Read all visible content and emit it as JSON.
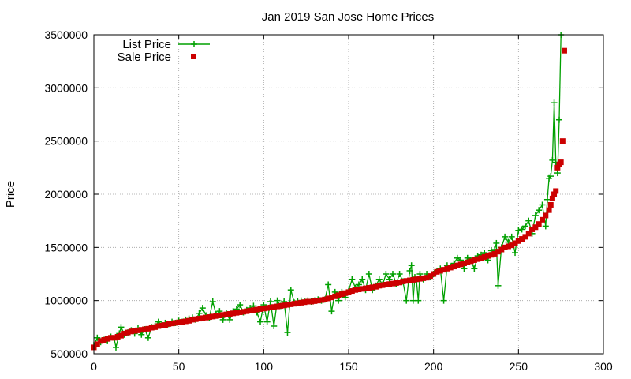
{
  "chart_data": {
    "type": "scatter",
    "title": "Jan 2019 San Jose Home Prices",
    "xlabel": "",
    "ylabel": "Price",
    "xlim": [
      0,
      300
    ],
    "ylim": [
      500000,
      3500000
    ],
    "xticks": [
      "0",
      "50",
      "100",
      "150",
      "200",
      "250",
      "300"
    ],
    "yticks": [
      "500000",
      "1000000",
      "1500000",
      "2000000",
      "2500000",
      "3000000",
      "3500000"
    ],
    "grid": true,
    "legend_position": "top-left",
    "series": [
      {
        "name": "List Price",
        "color": "#00a000",
        "style": "lines+plus-markers",
        "points": [
          [
            0,
            580000
          ],
          [
            2,
            650000
          ],
          [
            4,
            610000
          ],
          [
            6,
            630000
          ],
          [
            8,
            620000
          ],
          [
            10,
            660000
          ],
          [
            12,
            640000
          ],
          [
            13,
            560000
          ],
          [
            15,
            690000
          ],
          [
            16,
            750000
          ],
          [
            18,
            680000
          ],
          [
            20,
            700000
          ],
          [
            22,
            720000
          ],
          [
            24,
            690000
          ],
          [
            26,
            740000
          ],
          [
            28,
            680000
          ],
          [
            30,
            730000
          ],
          [
            32,
            650000
          ],
          [
            34,
            750000
          ],
          [
            36,
            760000
          ],
          [
            38,
            800000
          ],
          [
            40,
            770000
          ],
          [
            42,
            790000
          ],
          [
            44,
            780000
          ],
          [
            46,
            800000
          ],
          [
            48,
            790000
          ],
          [
            50,
            810000
          ],
          [
            52,
            800000
          ],
          [
            54,
            820000
          ],
          [
            56,
            830000
          ],
          [
            58,
            840000
          ],
          [
            60,
            820000
          ],
          [
            62,
            880000
          ],
          [
            64,
            930000
          ],
          [
            66,
            860000
          ],
          [
            68,
            840000
          ],
          [
            70,
            990000
          ],
          [
            72,
            870000
          ],
          [
            74,
            900000
          ],
          [
            76,
            820000
          ],
          [
            78,
            880000
          ],
          [
            80,
            820000
          ],
          [
            82,
            900000
          ],
          [
            84,
            920000
          ],
          [
            86,
            960000
          ],
          [
            88,
            890000
          ],
          [
            90,
            910000
          ],
          [
            92,
            930000
          ],
          [
            94,
            950000
          ],
          [
            96,
            890000
          ],
          [
            98,
            800000
          ],
          [
            100,
            960000
          ],
          [
            102,
            800000
          ],
          [
            104,
            990000
          ],
          [
            106,
            760000
          ],
          [
            108,
            1000000
          ],
          [
            110,
            950000
          ],
          [
            112,
            990000
          ],
          [
            114,
            700000
          ],
          [
            116,
            1100000
          ],
          [
            118,
            980000
          ],
          [
            120,
            990000
          ],
          [
            122,
            1000000
          ],
          [
            124,
            990000
          ],
          [
            126,
            1000000
          ],
          [
            128,
            990000
          ],
          [
            130,
            1000000
          ],
          [
            132,
            1010000
          ],
          [
            134,
            1000000
          ],
          [
            136,
            1010000
          ],
          [
            138,
            1150000
          ],
          [
            140,
            900000
          ],
          [
            142,
            1080000
          ],
          [
            144,
            1000000
          ],
          [
            146,
            1080000
          ],
          [
            148,
            1030000
          ],
          [
            150,
            1090000
          ],
          [
            152,
            1200000
          ],
          [
            154,
            1120000
          ],
          [
            156,
            1150000
          ],
          [
            158,
            1200000
          ],
          [
            160,
            1100000
          ],
          [
            162,
            1250000
          ],
          [
            164,
            1100000
          ],
          [
            166,
            1140000
          ],
          [
            168,
            1200000
          ],
          [
            170,
            1150000
          ],
          [
            172,
            1250000
          ],
          [
            174,
            1200000
          ],
          [
            176,
            1250000
          ],
          [
            178,
            1160000
          ],
          [
            180,
            1250000
          ],
          [
            182,
            1180000
          ],
          [
            184,
            1000000
          ],
          [
            186,
            1280000
          ],
          [
            187,
            1330000
          ],
          [
            188,
            1000000
          ],
          [
            189,
            1220000
          ],
          [
            190,
            1180000
          ],
          [
            191,
            1000000
          ],
          [
            192,
            1250000
          ],
          [
            194,
            1200000
          ],
          [
            196,
            1250000
          ],
          [
            198,
            1220000
          ],
          [
            200,
            1250000
          ],
          [
            202,
            1280000
          ],
          [
            204,
            1300000
          ],
          [
            206,
            1000000
          ],
          [
            208,
            1330000
          ],
          [
            210,
            1320000
          ],
          [
            212,
            1350000
          ],
          [
            214,
            1400000
          ],
          [
            216,
            1380000
          ],
          [
            218,
            1300000
          ],
          [
            220,
            1400000
          ],
          [
            222,
            1380000
          ],
          [
            224,
            1300000
          ],
          [
            226,
            1420000
          ],
          [
            228,
            1430000
          ],
          [
            230,
            1450000
          ],
          [
            232,
            1380000
          ],
          [
            234,
            1470000
          ],
          [
            236,
            1480000
          ],
          [
            237,
            1540000
          ],
          [
            238,
            1140000
          ],
          [
            240,
            1500000
          ],
          [
            242,
            1600000
          ],
          [
            244,
            1550000
          ],
          [
            246,
            1600000
          ],
          [
            248,
            1450000
          ],
          [
            250,
            1660000
          ],
          [
            252,
            1670000
          ],
          [
            254,
            1700000
          ],
          [
            256,
            1750000
          ],
          [
            258,
            1630000
          ],
          [
            260,
            1800000
          ],
          [
            262,
            1850000
          ],
          [
            264,
            1900000
          ],
          [
            266,
            1700000
          ],
          [
            267,
            1950000
          ],
          [
            268,
            2150000
          ],
          [
            269,
            2170000
          ],
          [
            270,
            2320000
          ],
          [
            271,
            2860000
          ],
          [
            272,
            2300000
          ],
          [
            273,
            2200000
          ],
          [
            274,
            2700000
          ],
          [
            275,
            3500000
          ]
        ]
      },
      {
        "name": "Sale Price",
        "color": "#cc0000",
        "style": "square-markers",
        "points": [
          [
            0,
            560000
          ],
          [
            2,
            590000
          ],
          [
            4,
            620000
          ],
          [
            6,
            630000
          ],
          [
            8,
            640000
          ],
          [
            10,
            650000
          ],
          [
            12,
            650000
          ],
          [
            14,
            660000
          ],
          [
            16,
            670000
          ],
          [
            18,
            690000
          ],
          [
            20,
            700000
          ],
          [
            22,
            710000
          ],
          [
            24,
            715000
          ],
          [
            26,
            720000
          ],
          [
            28,
            725000
          ],
          [
            30,
            730000
          ],
          [
            32,
            735000
          ],
          [
            34,
            745000
          ],
          [
            36,
            750000
          ],
          [
            38,
            760000
          ],
          [
            40,
            765000
          ],
          [
            42,
            770000
          ],
          [
            44,
            780000
          ],
          [
            46,
            785000
          ],
          [
            48,
            790000
          ],
          [
            50,
            795000
          ],
          [
            52,
            800000
          ],
          [
            54,
            805000
          ],
          [
            56,
            810000
          ],
          [
            58,
            820000
          ],
          [
            60,
            825000
          ],
          [
            62,
            830000
          ],
          [
            64,
            835000
          ],
          [
            66,
            840000
          ],
          [
            68,
            845000
          ],
          [
            70,
            850000
          ],
          [
            72,
            855000
          ],
          [
            74,
            860000
          ],
          [
            76,
            865000
          ],
          [
            78,
            870000
          ],
          [
            80,
            875000
          ],
          [
            82,
            880000
          ],
          [
            84,
            885000
          ],
          [
            86,
            890000
          ],
          [
            88,
            895000
          ],
          [
            90,
            900000
          ],
          [
            92,
            905000
          ],
          [
            94,
            910000
          ],
          [
            96,
            915000
          ],
          [
            98,
            920000
          ],
          [
            100,
            925000
          ],
          [
            102,
            930000
          ],
          [
            104,
            935000
          ],
          [
            106,
            940000
          ],
          [
            108,
            945000
          ],
          [
            110,
            950000
          ],
          [
            112,
            955000
          ],
          [
            114,
            960000
          ],
          [
            116,
            965000
          ],
          [
            118,
            970000
          ],
          [
            120,
            975000
          ],
          [
            122,
            980000
          ],
          [
            124,
            985000
          ],
          [
            126,
            990000
          ],
          [
            128,
            990000
          ],
          [
            130,
            995000
          ],
          [
            132,
            1000000
          ],
          [
            134,
            1005000
          ],
          [
            136,
            1010000
          ],
          [
            138,
            1020000
          ],
          [
            140,
            1030000
          ],
          [
            142,
            1040000
          ],
          [
            144,
            1050000
          ],
          [
            146,
            1060000
          ],
          [
            148,
            1070000
          ],
          [
            150,
            1080000
          ],
          [
            152,
            1090000
          ],
          [
            154,
            1100000
          ],
          [
            156,
            1105000
          ],
          [
            158,
            1110000
          ],
          [
            160,
            1115000
          ],
          [
            162,
            1120000
          ],
          [
            164,
            1125000
          ],
          [
            166,
            1130000
          ],
          [
            168,
            1140000
          ],
          [
            170,
            1145000
          ],
          [
            172,
            1150000
          ],
          [
            174,
            1155000
          ],
          [
            176,
            1160000
          ],
          [
            178,
            1165000
          ],
          [
            180,
            1170000
          ],
          [
            182,
            1180000
          ],
          [
            184,
            1185000
          ],
          [
            186,
            1190000
          ],
          [
            188,
            1195000
          ],
          [
            190,
            1200000
          ],
          [
            192,
            1205000
          ],
          [
            194,
            1210000
          ],
          [
            196,
            1215000
          ],
          [
            198,
            1230000
          ],
          [
            200,
            1250000
          ],
          [
            202,
            1270000
          ],
          [
            204,
            1280000
          ],
          [
            206,
            1290000
          ],
          [
            208,
            1300000
          ],
          [
            210,
            1310000
          ],
          [
            212,
            1320000
          ],
          [
            214,
            1330000
          ],
          [
            216,
            1340000
          ],
          [
            218,
            1350000
          ],
          [
            220,
            1360000
          ],
          [
            222,
            1370000
          ],
          [
            224,
            1380000
          ],
          [
            226,
            1390000
          ],
          [
            228,
            1400000
          ],
          [
            230,
            1410000
          ],
          [
            232,
            1420000
          ],
          [
            234,
            1430000
          ],
          [
            236,
            1440000
          ],
          [
            238,
            1460000
          ],
          [
            240,
            1480000
          ],
          [
            242,
            1500000
          ],
          [
            244,
            1510000
          ],
          [
            246,
            1520000
          ],
          [
            248,
            1540000
          ],
          [
            250,
            1560000
          ],
          [
            252,
            1580000
          ],
          [
            254,
            1600000
          ],
          [
            256,
            1630000
          ],
          [
            258,
            1670000
          ],
          [
            260,
            1690000
          ],
          [
            262,
            1720000
          ],
          [
            264,
            1760000
          ],
          [
            266,
            1800000
          ],
          [
            268,
            1850000
          ],
          [
            269,
            1900000
          ],
          [
            270,
            1960000
          ],
          [
            271,
            2000000
          ],
          [
            272,
            2030000
          ],
          [
            273,
            2250000
          ],
          [
            274,
            2280000
          ],
          [
            275,
            2300000
          ],
          [
            276,
            2500000
          ],
          [
            277,
            3350000
          ]
        ]
      }
    ]
  }
}
